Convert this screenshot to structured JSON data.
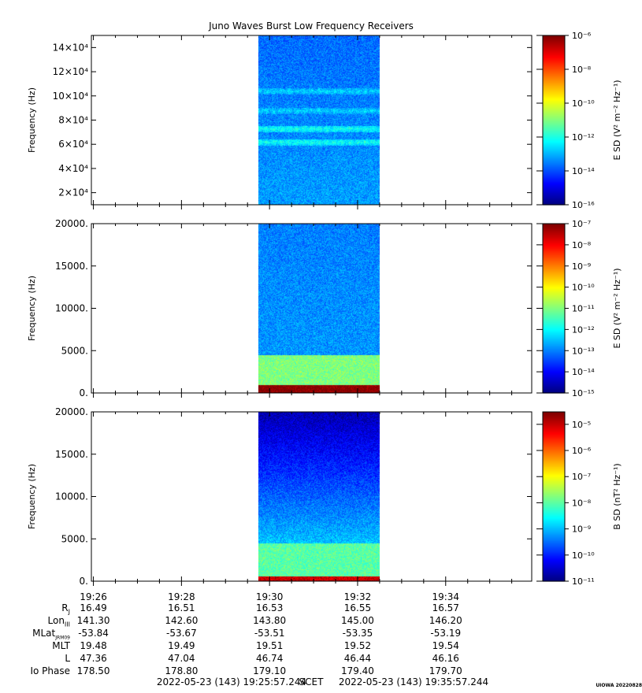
{
  "chart_data": {
    "type": "heatmap",
    "title": "Juno Waves Burst Low Frequency Receivers",
    "panels": [
      {
        "ylabel": "Frequency (Hz)",
        "yticks": [
          "2×10⁴",
          "4×10⁴",
          "6×10⁴",
          "8×10⁴",
          "10×10⁴",
          "12×10⁴",
          "14×10⁴"
        ],
        "ytick_values": [
          20000,
          40000,
          60000,
          80000,
          100000,
          120000,
          140000
        ],
        "ylim": [
          10000,
          150000
        ],
        "colorbar_label": "E SD (V² m⁻² Hz⁻¹)",
        "colorbar_ticks": [
          "10⁻¹⁶",
          "10⁻¹⁴",
          "10⁻¹²",
          "10⁻¹⁰",
          "10⁻⁸",
          "10⁻⁶"
        ],
        "colorbar_range": [
          1e-16,
          1e-06
        ],
        "data_span": [
          "19:29:45",
          "19:32:30"
        ],
        "features": [
          {
            "kind": "band",
            "center_hz": 62000,
            "level": 1e-12
          },
          {
            "kind": "band",
            "center_hz": 73000,
            "level": 1e-12
          },
          {
            "kind": "band",
            "center_hz": 88000,
            "level": 3e-13
          },
          {
            "kind": "band",
            "center_hz": 104000,
            "level": 3e-13
          }
        ]
      },
      {
        "ylabel": "Frequency (Hz)",
        "yticks": [
          "0.",
          "5000.",
          "10000.",
          "15000.",
          "20000."
        ],
        "ytick_values": [
          0,
          5000,
          10000,
          15000,
          20000
        ],
        "ylim": [
          0,
          20000
        ],
        "colorbar_label": "E SD (V² m⁻² Hz⁻¹)",
        "colorbar_ticks": [
          "10⁻¹⁵",
          "10⁻¹⁴",
          "10⁻¹³",
          "10⁻¹²",
          "10⁻¹¹",
          "10⁻¹⁰",
          "10⁻⁹",
          "10⁻⁸",
          "10⁻⁷"
        ],
        "colorbar_range": [
          1e-15,
          1e-07
        ],
        "data_span": [
          "19:29:45",
          "19:32:30"
        ],
        "features": [
          {
            "kind": "band",
            "low_hz": 0,
            "high_hz": 1000,
            "level": 1e-07
          },
          {
            "kind": "band",
            "low_hz": 1000,
            "high_hz": 4500,
            "level": 1e-11
          }
        ]
      },
      {
        "ylabel": "Frequency (Hz)",
        "yticks": [
          "0.",
          "5000.",
          "10000.",
          "15000.",
          "20000."
        ],
        "ytick_values": [
          0,
          5000,
          10000,
          15000,
          20000
        ],
        "ylim": [
          0,
          20000
        ],
        "colorbar_label": "B SD (nT² Hz⁻¹)",
        "colorbar_ticks": [
          "10⁻¹¹",
          "10⁻¹⁰",
          "10⁻⁹",
          "10⁻⁸",
          "10⁻⁷",
          "10⁻⁶",
          "10⁻⁵"
        ],
        "colorbar_range": [
          1e-11,
          3e-05
        ],
        "data_span": [
          "19:29:45",
          "19:32:30"
        ],
        "features": [
          {
            "kind": "band",
            "low_hz": 0,
            "high_hz": 600,
            "level": 1e-05
          },
          {
            "kind": "band",
            "low_hz": 600,
            "high_hz": 4500,
            "level": 1e-08
          }
        ]
      }
    ],
    "x_ticks": [
      "19:26",
      "19:28",
      "19:30",
      "19:32",
      "19:34"
    ],
    "xlim": [
      "19:25:57.244",
      "19:35:57.244"
    ],
    "ephemeris": [
      {
        "label": "R",
        "sub": "J",
        "values": [
          "16.49",
          "16.51",
          "16.53",
          "16.55",
          "16.57"
        ]
      },
      {
        "label": "Lon",
        "sub": "III",
        "values": [
          "141.30",
          "142.60",
          "143.80",
          "145.00",
          "146.20"
        ]
      },
      {
        "label": "MLat",
        "sub": "JRM09",
        "values": [
          "-53.84",
          "-53.67",
          "-53.51",
          "-53.35",
          "-53.19"
        ]
      },
      {
        "label": "MLT",
        "sub": "",
        "values": [
          "19.48",
          "19.49",
          "19.51",
          "19.52",
          "19.54"
        ]
      },
      {
        "label": "L",
        "sub": "",
        "values": [
          "47.36",
          "47.04",
          "46.74",
          "46.44",
          "46.16"
        ]
      },
      {
        "label": "Io Phase",
        "sub": "",
        "values": [
          "178.50",
          "178.80",
          "179.10",
          "179.40",
          "179.70"
        ]
      }
    ],
    "footer": {
      "start": "2022-05-23 (143) 19:25:57.244",
      "scet": "SCET",
      "end": "2022-05-23 (143) 19:35:57.244",
      "stamp": "UIOWA 20220828"
    }
  }
}
